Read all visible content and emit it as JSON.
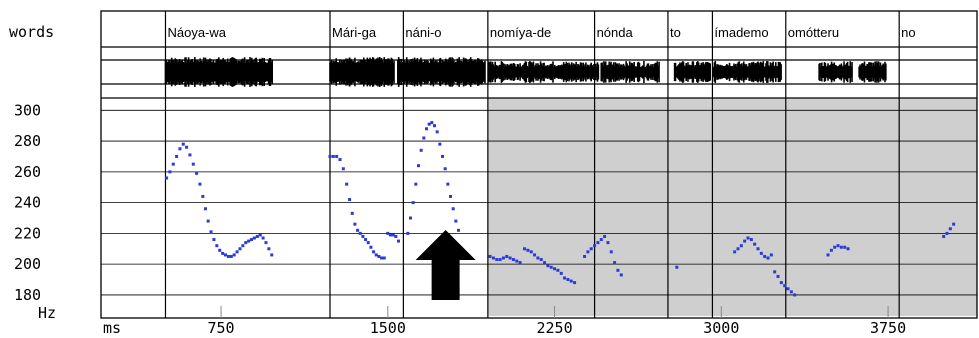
{
  "chart_data": {
    "type": "scatter",
    "tier_label": "words",
    "words": [
      {
        "text": "Náoya-wa",
        "start": 500,
        "end": 1240
      },
      {
        "text": "Mári-ga",
        "start": 1240,
        "end": 1570
      },
      {
        "text": "náni-o",
        "start": 1570,
        "end": 1950
      },
      {
        "text": "nomíya-de",
        "start": 1950,
        "end": 2430
      },
      {
        "text": "nónda",
        "start": 2430,
        "end": 2760
      },
      {
        "text": "to",
        "start": 2760,
        "end": 2960
      },
      {
        "text": "ímademo",
        "start": 2960,
        "end": 3290
      },
      {
        "text": "omótteru",
        "start": 3290,
        "end": 3800
      },
      {
        "text": "no",
        "start": 3800,
        "end": 4150
      }
    ],
    "shaded_from_ms": 1950,
    "arrow_at_ms": 1760,
    "ylabel": "Hz",
    "xlabel": "ms",
    "y_ticks": [
      300,
      280,
      260,
      240,
      220,
      200,
      180
    ],
    "x_ticks": [
      750,
      1500,
      2250,
      3000,
      3750
    ],
    "xlim": [
      210,
      4150
    ],
    "ylim": [
      165,
      308
    ],
    "series": [
      {
        "color": "#2a3bd6",
        "points": [
          [
            505,
            256
          ],
          [
            520,
            260
          ],
          [
            535,
            265
          ],
          [
            550,
            270
          ],
          [
            565,
            275
          ],
          [
            580,
            278
          ],
          [
            595,
            276
          ],
          [
            610,
            271
          ],
          [
            625,
            265
          ],
          [
            640,
            259
          ],
          [
            655,
            252
          ],
          [
            668,
            244
          ],
          [
            680,
            236
          ],
          [
            692,
            228
          ],
          [
            705,
            221
          ],
          [
            718,
            216
          ],
          [
            731,
            212
          ],
          [
            744,
            209
          ],
          [
            757,
            207
          ],
          [
            770,
            206
          ],
          [
            783,
            205
          ],
          [
            796,
            205
          ],
          [
            809,
            206
          ],
          [
            822,
            208
          ],
          [
            835,
            210
          ],
          [
            848,
            212
          ],
          [
            861,
            214
          ],
          [
            874,
            215
          ],
          [
            887,
            216
          ],
          [
            900,
            217
          ],
          [
            913,
            218
          ],
          [
            926,
            219
          ],
          [
            939,
            217
          ],
          [
            952,
            214
          ],
          [
            965,
            210
          ],
          [
            978,
            206
          ],
          [
            1240,
            270
          ],
          [
            1255,
            270
          ],
          [
            1270,
            270
          ],
          [
            1285,
            268
          ],
          [
            1300,
            262
          ],
          [
            1315,
            252
          ],
          [
            1328,
            242
          ],
          [
            1340,
            233
          ],
          [
            1352,
            226
          ],
          [
            1364,
            222
          ],
          [
            1376,
            220
          ],
          [
            1388,
            218
          ],
          [
            1400,
            216
          ],
          [
            1412,
            214
          ],
          [
            1424,
            211
          ],
          [
            1436,
            208
          ],
          [
            1448,
            206
          ],
          [
            1460,
            205
          ],
          [
            1472,
            204
          ],
          [
            1484,
            204
          ],
          [
            1500,
            220
          ],
          [
            1512,
            219
          ],
          [
            1524,
            219
          ],
          [
            1536,
            218
          ],
          [
            1548,
            215
          ],
          [
            1590,
            220
          ],
          [
            1602,
            230
          ],
          [
            1614,
            240
          ],
          [
            1626,
            252
          ],
          [
            1638,
            264
          ],
          [
            1650,
            274
          ],
          [
            1662,
            282
          ],
          [
            1674,
            288
          ],
          [
            1686,
            291
          ],
          [
            1698,
            292
          ],
          [
            1710,
            290
          ],
          [
            1722,
            286
          ],
          [
            1734,
            278
          ],
          [
            1746,
            270
          ],
          [
            1758,
            262
          ],
          [
            1770,
            252
          ],
          [
            1782,
            244
          ],
          [
            1794,
            236
          ],
          [
            1806,
            228
          ],
          [
            1818,
            222
          ],
          [
            1960,
            205
          ],
          [
            1975,
            204
          ],
          [
            1990,
            203
          ],
          [
            2005,
            203
          ],
          [
            2020,
            204
          ],
          [
            2035,
            205
          ],
          [
            2050,
            204
          ],
          [
            2065,
            203
          ],
          [
            2080,
            202
          ],
          [
            2095,
            201
          ],
          [
            2115,
            210
          ],
          [
            2130,
            209
          ],
          [
            2145,
            208
          ],
          [
            2160,
            206
          ],
          [
            2175,
            204
          ],
          [
            2190,
            203
          ],
          [
            2205,
            201
          ],
          [
            2220,
            199
          ],
          [
            2235,
            198
          ],
          [
            2250,
            197
          ],
          [
            2265,
            196
          ],
          [
            2280,
            194
          ],
          [
            2295,
            191
          ],
          [
            2310,
            190
          ],
          [
            2325,
            189
          ],
          [
            2340,
            188
          ],
          [
            2385,
            205
          ],
          [
            2400,
            208
          ],
          [
            2415,
            210
          ],
          [
            2430,
            212
          ],
          [
            2445,
            214
          ],
          [
            2460,
            216
          ],
          [
            2475,
            218
          ],
          [
            2490,
            214
          ],
          [
            2505,
            208
          ],
          [
            2520,
            201
          ],
          [
            2535,
            196
          ],
          [
            2550,
            193
          ],
          [
            2800,
            198
          ],
          [
            3060,
            208
          ],
          [
            3075,
            210
          ],
          [
            3090,
            212
          ],
          [
            3105,
            215
          ],
          [
            3120,
            217
          ],
          [
            3135,
            216
          ],
          [
            3150,
            213
          ],
          [
            3165,
            210
          ],
          [
            3180,
            207
          ],
          [
            3195,
            205
          ],
          [
            3210,
            204
          ],
          [
            3225,
            206
          ],
          [
            3240,
            195
          ],
          [
            3255,
            192
          ],
          [
            3270,
            188
          ],
          [
            3285,
            186
          ],
          [
            3300,
            184
          ],
          [
            3315,
            182
          ],
          [
            3330,
            180
          ],
          [
            3480,
            206
          ],
          [
            3495,
            209
          ],
          [
            3510,
            211
          ],
          [
            3525,
            212
          ],
          [
            3540,
            211
          ],
          [
            3555,
            211
          ],
          [
            3570,
            210
          ],
          [
            4000,
            218
          ],
          [
            4015,
            220
          ],
          [
            4030,
            223
          ],
          [
            4045,
            226
          ]
        ]
      }
    ]
  }
}
